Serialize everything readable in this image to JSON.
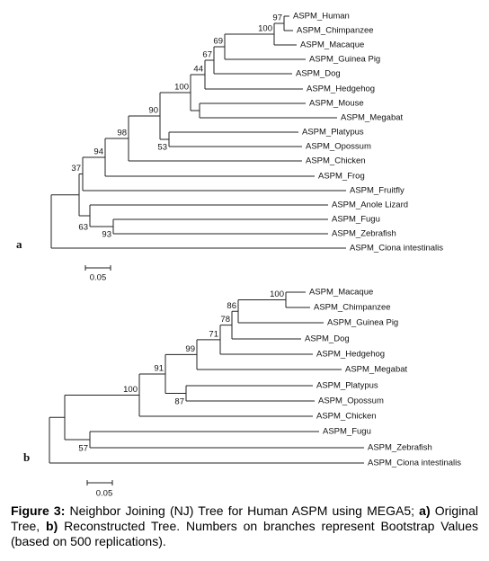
{
  "tree_a": {
    "panel_label": "a",
    "leaves": [
      "ASPM_Human",
      "ASPM_Chimpanzee",
      "ASPM_Macaque",
      "ASPM_Guinea Pig",
      "ASPM_Dog",
      "ASPM_Hedgehog",
      "ASPM_Mouse",
      "ASPM_Megabat",
      "ASPM_Platypus",
      "ASPM_Opossum",
      "ASPM_Chicken",
      "ASPM_Frog",
      "ASPM_Fruitfly",
      "ASPM_Anole Lizard",
      "ASPM_Fugu",
      "ASPM_Zebrafish",
      "ASPM_Ciona intestinalis"
    ],
    "bootstrap": [
      97,
      100,
      69,
      67,
      44,
      100,
      53,
      90,
      98,
      94,
      37,
      93,
      63
    ],
    "scale_label": 0.05
  },
  "tree_b": {
    "panel_label": "b",
    "leaves": [
      "ASPM_Macaque",
      "ASPM_Chimpanzee",
      "ASPM_Guinea Pig",
      "ASPM_Dog",
      "ASPM_Hedgehog",
      "ASPM_Megabat",
      "ASPM_Platypus",
      "ASPM_Opossum",
      "ASPM_Chicken",
      "ASPM_Fugu",
      "ASPM_Zebrafish",
      "ASPM_Ciona intestinalis"
    ],
    "bootstrap": [
      100,
      86,
      78,
      71,
      99,
      87,
      91,
      100,
      57
    ],
    "scale_label": 0.05
  },
  "caption": {
    "label": "Figure 3:",
    "text1": "Neighbor Joining (NJ) Tree for Human ASPM using MEGA5;",
    "a": "a)",
    "text2": "Original Tree,",
    "b": "b)",
    "text3": "Reconstructed Tree. Numbers on branches represent Bootstrap Values (based on 500 replications)."
  }
}
